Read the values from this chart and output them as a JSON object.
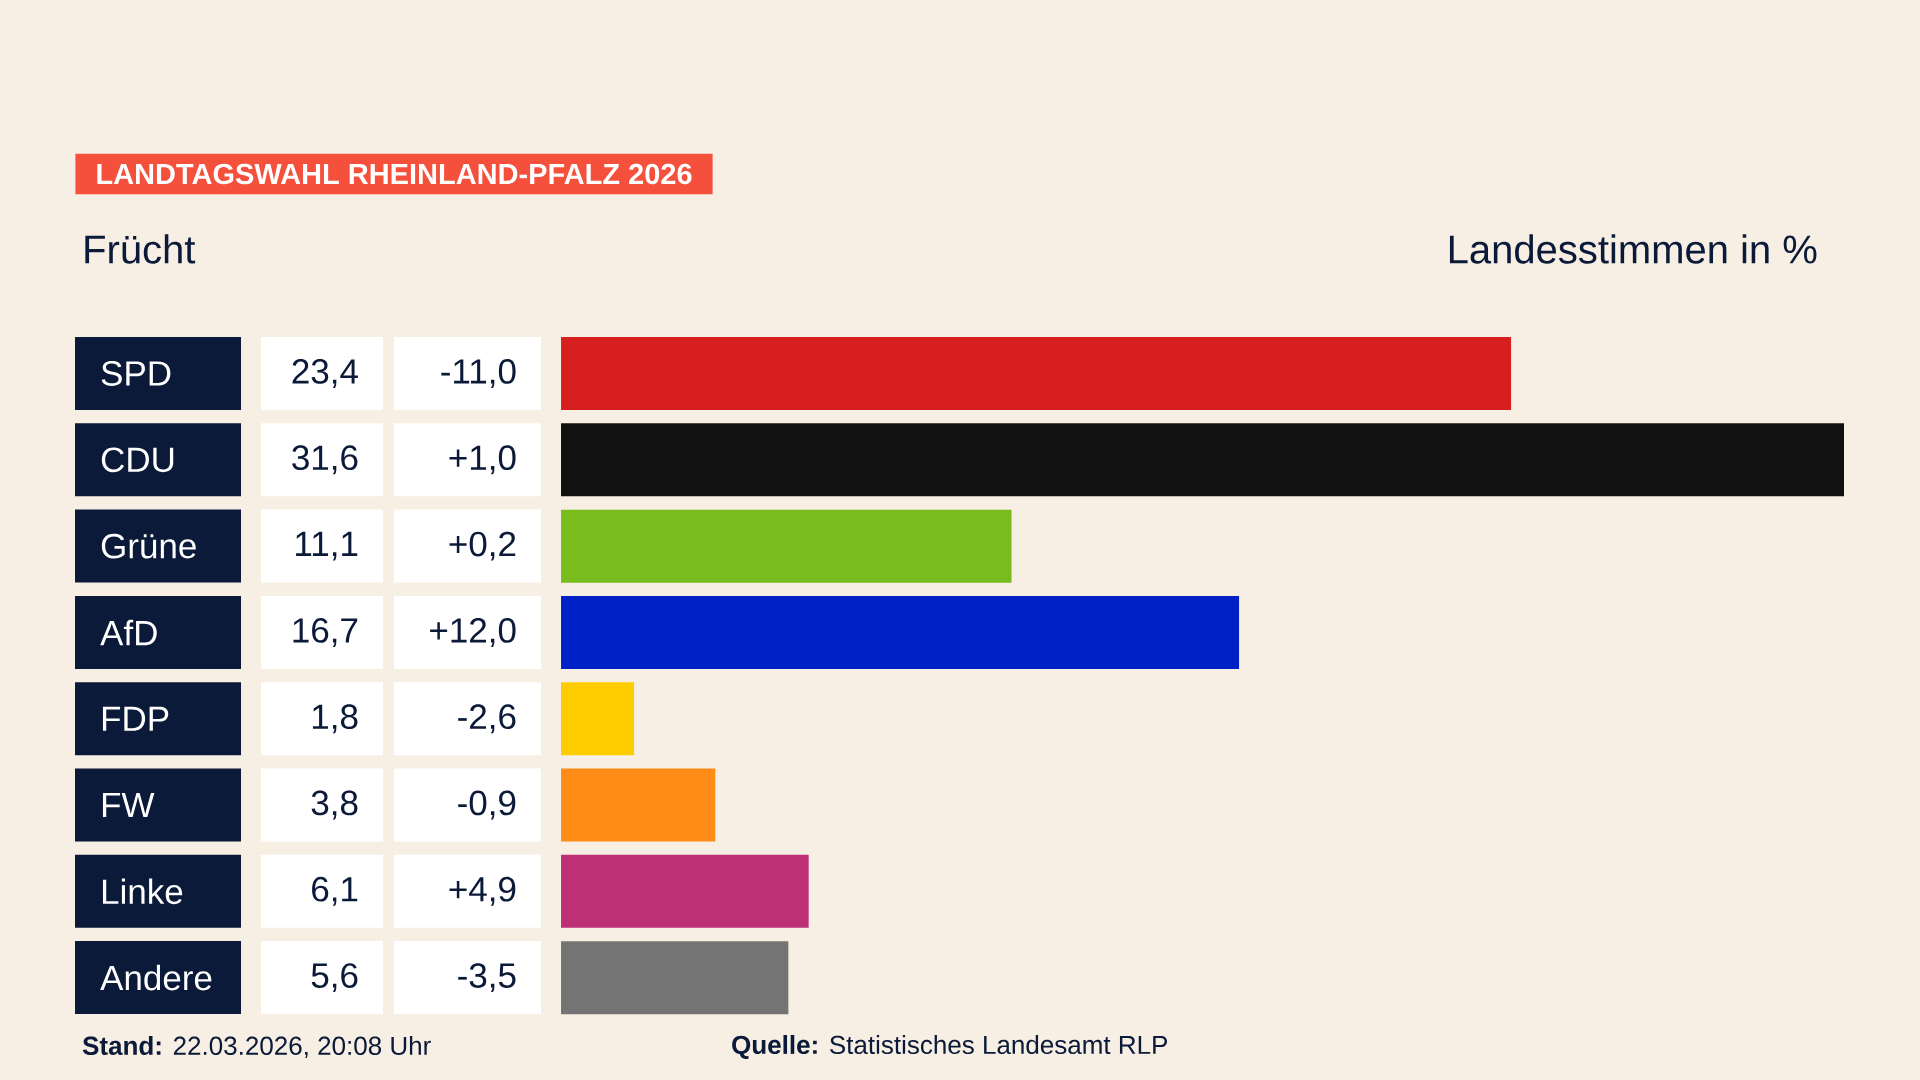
{
  "chart_data": {
    "type": "bar",
    "orientation": "horizontal",
    "title": "LANDTAGSWAHL RHEINLAND-PFALZ 2026",
    "subtitle": "Frücht",
    "xlabel": "Landesstimmen    in %",
    "categories": [
      "SPD",
      "CDU",
      "Grüne",
      "AfD",
      "FDP",
      "FW",
      "Linke",
      "Andere"
    ],
    "values": [
      23.4,
      31.6,
      11.1,
      16.7,
      1.8,
      3.8,
      6.1,
      5.6
    ],
    "value_labels": [
      "23,4",
      "31,6",
      "11,1",
      "16,7",
      "1,8",
      "3,8",
      "6,1",
      "5,6"
    ],
    "colors": [
      "#d81f20",
      "#111111",
      "#78bd1d",
      "#0021c6",
      "#ffcc00",
      "#ff8c17",
      "#bd3075",
      "#747474"
    ],
    "xlim": [
      0,
      31.6
    ],
    "annotations": [
      "-11,0",
      "+1,0",
      "+0,2",
      "+12,0",
      "-2,6",
      "-0,9",
      "+4,9",
      "-3,5",
      "**Stand:** 22.03.2026, 20:08 Uhr",
      "**Quelle:** Statistisches Landesamt RLP"
    ]
  }
}
